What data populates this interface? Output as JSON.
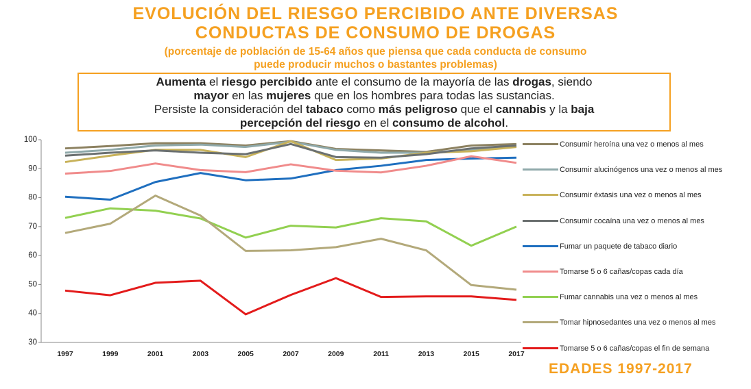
{
  "header": {
    "title": [
      "EVOLUCIÓN DEL RIESGO PERCIBIDO ANTE DIVERSAS",
      "CONDUCTAS DE CONSUMO DE DROGAS"
    ],
    "subtitle": [
      "(porcentaje de población de 15-64 años que piensa que cada conducta de consumo",
      "puede producir muchos o bastantes problemas)"
    ],
    "box": [
      [
        {
          "text": "Aumenta",
          "bold": true
        },
        {
          "text": " el "
        },
        {
          "text": "riesgo percibido",
          "bold": true
        },
        {
          "text": " ante el consumo de la mayoría de las "
        },
        {
          "text": "drogas",
          "bold": true
        },
        {
          "text": ", siendo"
        }
      ],
      [
        {
          "text": "mayor",
          "bold": true
        },
        {
          "text": " en las "
        },
        {
          "text": "mujeres",
          "bold": true
        },
        {
          "text": " que en los hombres para todas las sustancias."
        }
      ],
      [
        {
          "text": "Persiste la consideración del "
        },
        {
          "text": "tabaco",
          "bold": true
        },
        {
          "text": " como "
        },
        {
          "text": "más peligroso",
          "bold": true
        },
        {
          "text": " que el "
        },
        {
          "text": "cannabis",
          "bold": true
        },
        {
          "text": " y la "
        },
        {
          "text": "baja",
          "bold": true
        }
      ],
      [
        {
          "text": "percepción del riesgo",
          "bold": true
        },
        {
          "text": " en el "
        },
        {
          "text": "consumo de alcohol",
          "bold": true
        },
        {
          "text": "."
        }
      ]
    ]
  },
  "chart_data": {
    "type": "line",
    "categories": [
      "1997",
      "1999",
      "2001",
      "2003",
      "2005",
      "2007",
      "2009",
      "2011",
      "2013",
      "2015",
      "2017"
    ],
    "ylim": [
      30,
      100
    ],
    "yticks": [
      30,
      40,
      50,
      60,
      70,
      80,
      90,
      100
    ],
    "grid": false,
    "legend": "right",
    "series": [
      {
        "name": "Consumir heroína una vez o menos al mes",
        "color": "#8c8160",
        "values": [
          97,
          97.8,
          98.8,
          98.8,
          98,
          99.5,
          96.8,
          96.3,
          95.8,
          98,
          98.5
        ]
      },
      {
        "name": "Consumir alucinógenos una vez o menos al mes",
        "color": "#8fa9aa",
        "values": [
          95.5,
          96.5,
          98,
          98.3,
          97.5,
          99.3,
          96.5,
          95.5,
          95.5,
          96.5,
          98
        ]
      },
      {
        "name": "Consumir éxtasis una vez o menos al mes",
        "color": "#c8b25a",
        "values": [
          92.3,
          94.5,
          96.5,
          96.5,
          94,
          99.5,
          93,
          93.5,
          95.5,
          96,
          97.5
        ]
      },
      {
        "name": "Consumir cocaína una vez o menos al mes",
        "color": "#6b7070",
        "values": [
          94.5,
          95.5,
          96.3,
          95.5,
          95,
          98.5,
          94,
          93.8,
          95,
          97,
          98
        ]
      },
      {
        "name": "Fumar un paquete de tabaco diario",
        "color": "#1f6fbf",
        "values": [
          80.3,
          79.3,
          85.4,
          88.5,
          86,
          86.6,
          89.5,
          91,
          93,
          93.5,
          93.8
        ]
      },
      {
        "name": "Tomarse 5 o 6 cañas/copas cada día",
        "color": "#f08b8b",
        "values": [
          88.3,
          89.2,
          91.8,
          89.5,
          88.8,
          91.5,
          89.3,
          88.7,
          91,
          94.3,
          92
        ]
      },
      {
        "name": "Fumar cannabis una vez o menos al mes",
        "color": "#92d050",
        "values": [
          73,
          76.3,
          75.5,
          72.8,
          66.2,
          70.3,
          69.7,
          72.9,
          71.8,
          63.4,
          70
        ]
      },
      {
        "name": "Tomar hipnosedantes una vez o menos al mes",
        "color": "#b3a97a",
        "values": [
          67.8,
          71,
          80.7,
          73.8,
          61.6,
          61.8,
          62.9,
          65.8,
          61.8,
          49.8,
          48.2
        ]
      },
      {
        "name": "Tomarse 5 o 6 cañas/copas el fin de semana",
        "color": "#e31b1b",
        "values": [
          47.9,
          46.3,
          50.6,
          51.3,
          39.7,
          46.4,
          52.2,
          45.7,
          45.9,
          45.9,
          44.7
        ]
      }
    ]
  },
  "footer": "EDADES 1997-2017"
}
